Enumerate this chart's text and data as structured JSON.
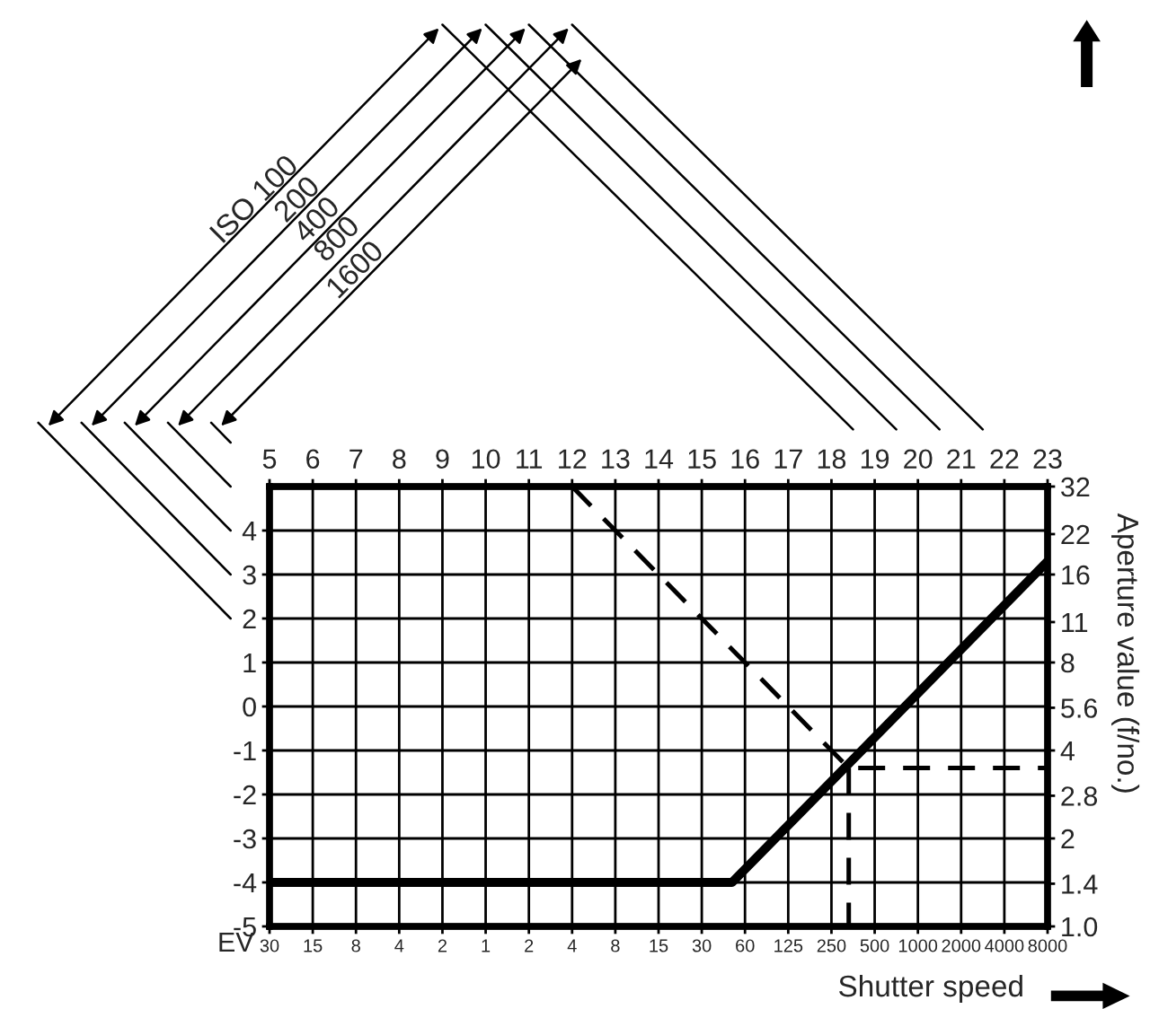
{
  "chart_data": {
    "type": "line",
    "xlabel": "Shutter speed",
    "ylabel": "EV",
    "y2label": "Aperture value (f/no.)",
    "annotations": [
      "ISO 100",
      "200",
      "400",
      "800",
      "1600"
    ],
    "categories": [
      "30",
      "15",
      "8",
      "4",
      "2",
      "1",
      "2",
      "4",
      "8",
      "15",
      "30",
      "60",
      "125",
      "250",
      "500",
      "1000",
      "2000",
      "4000",
      "8000"
    ],
    "x2lim": [
      5,
      23
    ],
    "x2ticks": [
      5,
      6,
      7,
      8,
      9,
      10,
      11,
      12,
      13,
      14,
      15,
      16,
      17,
      18,
      19,
      20,
      21,
      22,
      23
    ],
    "ylim": [
      -5,
      5
    ],
    "yticks": [
      -5,
      -4,
      -3,
      -2,
      -1,
      0,
      1,
      2,
      3,
      4
    ],
    "log": "y2",
    "y2lim": [
      1.0,
      32
    ],
    "y2ticks": [
      {
        "value": 1.0,
        "label": "1.0"
      },
      1.4,
      2,
      2.8,
      4,
      5.6,
      8,
      11,
      16,
      22,
      32
    ],
    "grid": true,
    "series": [
      {
        "axis": "x2",
        "color": "#000000",
        "line_style": "solid",
        "x": [
          5,
          15.7,
          23
        ],
        "values": [
          -4,
          -4,
          3.3
        ]
      },
      {
        "axis": "x2",
        "color": "#000000",
        "line_style": "dashed",
        "x": [
          12,
          18.4,
          23
        ],
        "values": [
          5,
          -1.4,
          -1.4
        ]
      },
      {
        "axis": "x2",
        "color": "#000000",
        "line_style": "dashed",
        "x": [
          18.4,
          18.4
        ],
        "values": [
          -1.4,
          -5
        ]
      }
    ]
  }
}
